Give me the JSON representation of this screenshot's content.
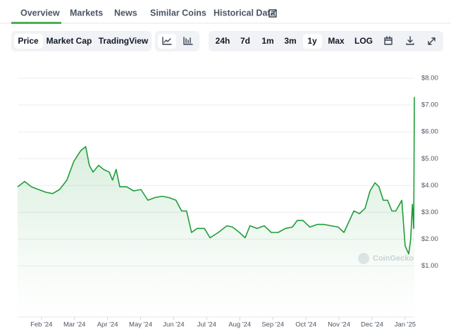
{
  "tabs": [
    "Overview",
    "Markets",
    "News",
    "Similar Coins",
    "Historical Data"
  ],
  "chart_modes": [
    "Price",
    "Market Cap",
    "TradingView"
  ],
  "ranges": [
    "24h",
    "7d",
    "1m",
    "3m",
    "1y",
    "Max",
    "LOG"
  ],
  "chart_data": {
    "type": "line",
    "color": "#1f9d3a",
    "grid": true,
    "watermark": "CoinGecko",
    "x": [
      1.28,
      1.49,
      1.7,
      1.91,
      2.13,
      2.34,
      2.55,
      2.77,
      2.98,
      3.19,
      3.34,
      3.45,
      3.56,
      3.73,
      3.88,
      4.05,
      4.15,
      4.26,
      4.37,
      4.58,
      4.79,
      5.01,
      5.22,
      5.43,
      5.65,
      5.86,
      6.07,
      6.24,
      6.39,
      6.54,
      6.71,
      6.93,
      7.1,
      7.35,
      7.61,
      7.78,
      7.99,
      8.16,
      8.31,
      8.52,
      8.74,
      8.95,
      9.16,
      9.38,
      9.59,
      9.74,
      9.91,
      10.12,
      10.34,
      10.55,
      10.76,
      10.98,
      11.15,
      11.3,
      11.45,
      11.62,
      11.79,
      11.94,
      12.09,
      12.21,
      12.34,
      12.47,
      12.6,
      12.72,
      12.9,
      13.0,
      13.11,
      13.17,
      13.22,
      13.26,
      13.28
    ],
    "values": [
      3.95,
      4.15,
      3.95,
      3.85,
      3.75,
      3.7,
      3.85,
      4.2,
      4.9,
      5.3,
      5.45,
      4.75,
      4.5,
      4.75,
      4.6,
      4.5,
      4.2,
      4.6,
      3.95,
      3.95,
      3.8,
      3.85,
      3.45,
      3.55,
      3.6,
      3.55,
      3.45,
      3.05,
      3.05,
      2.25,
      2.4,
      2.4,
      2.05,
      2.25,
      2.5,
      2.45,
      2.25,
      2.05,
      2.5,
      2.4,
      2.5,
      2.25,
      2.25,
      2.4,
      2.45,
      2.7,
      2.7,
      2.45,
      2.55,
      2.55,
      2.5,
      2.45,
      2.25,
      2.65,
      3.05,
      2.95,
      3.15,
      3.8,
      4.1,
      3.95,
      3.45,
      3.45,
      3.05,
      3.05,
      3.45,
      1.75,
      1.45,
      2.0,
      3.3,
      2.4,
      7.3
    ],
    "xlim": [
      1.28,
      13.28
    ],
    "ylim": [
      -0.9,
      8.55
    ],
    "xticks": [
      {
        "value": 2,
        "label": "Feb '24"
      },
      {
        "value": 3,
        "label": "Mar '24"
      },
      {
        "value": 4,
        "label": "Apr '24"
      },
      {
        "value": 5,
        "label": "May '24"
      },
      {
        "value": 6,
        "label": "Jun '24"
      },
      {
        "value": 7,
        "label": "Jul '24"
      },
      {
        "value": 8,
        "label": "Aug '24"
      },
      {
        "value": 9,
        "label": "Sep '24"
      },
      {
        "value": 10,
        "label": "Oct '24"
      },
      {
        "value": 11,
        "label": "Nov '24"
      },
      {
        "value": 12,
        "label": "Dec '24"
      },
      {
        "value": 13,
        "label": "Jan '25"
      }
    ],
    "yticks": [
      {
        "value": 1,
        "label": "$1.00"
      },
      {
        "value": 2,
        "label": "$2.00"
      },
      {
        "value": 3,
        "label": "$3.00"
      },
      {
        "value": 4,
        "label": "$4.00"
      },
      {
        "value": 5,
        "label": "$5.00"
      },
      {
        "value": 6,
        "label": "$6.00"
      },
      {
        "value": 7,
        "label": "$7.00"
      },
      {
        "value": 8,
        "label": "$8.00"
      }
    ]
  }
}
